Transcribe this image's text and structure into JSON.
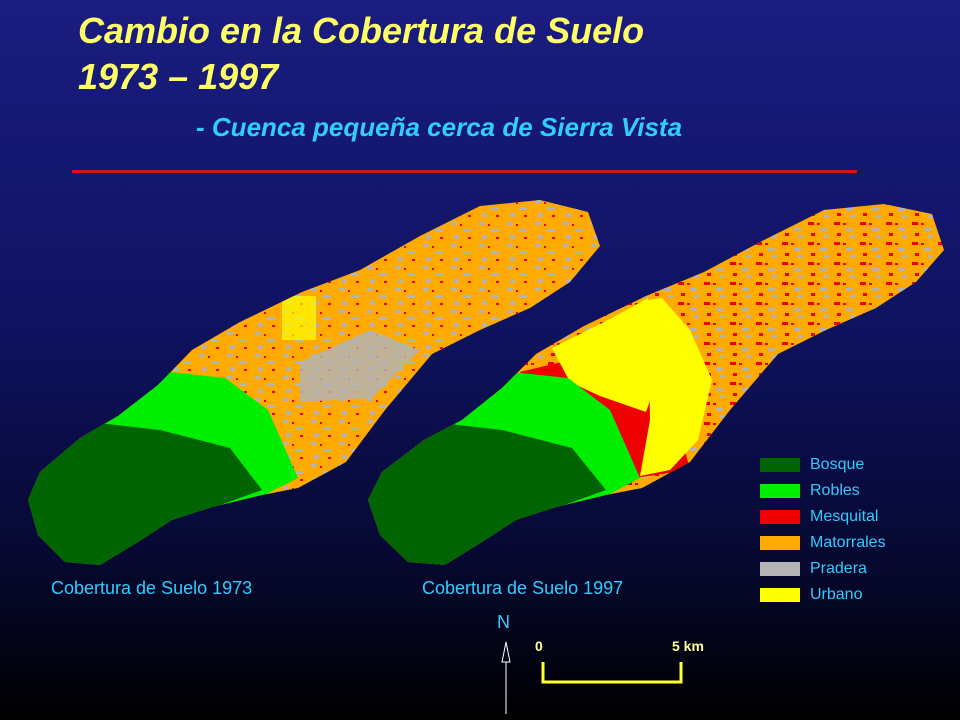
{
  "title_line1": "Cambio en la Cobertura de Suelo",
  "title_line2": "1973 – 1997",
  "subtitle_dash": "-",
  "subtitle_text": "Cuenca pequeña cerca de Sierra Vista",
  "caption_1973": "Cobertura de Suelo 1973",
  "caption_1997": "Cobertura de Suelo 1997",
  "legend": [
    {
      "label": "Bosque",
      "color": "#006400"
    },
    {
      "label": "Robles",
      "color": "#00ee00"
    },
    {
      "label": "Mesquital",
      "color": "#ee0000"
    },
    {
      "label": "Matorrales",
      "color": "#ffaa00"
    },
    {
      "label": "Pradera",
      "color": "#b4b4b4"
    },
    {
      "label": "Urbano",
      "color": "#ffff00"
    }
  ],
  "north_label": "N",
  "scale": {
    "start": "0",
    "end": "5 km"
  }
}
